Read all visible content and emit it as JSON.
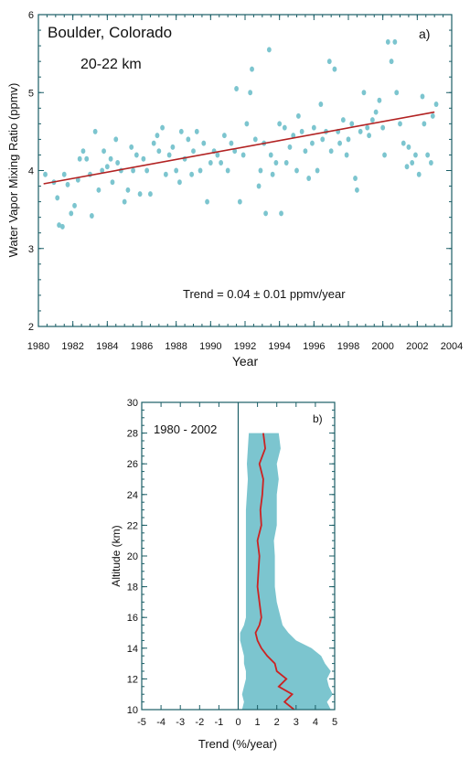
{
  "chart_data": [
    {
      "type": "scatter",
      "panel_label": "a)",
      "title": "Boulder, Colorado",
      "subtitle": "20-22 km",
      "xlabel": "Year",
      "ylabel": "Water Vapor Mixing Ratio (ppmv)",
      "xlim": [
        1980,
        2004
      ],
      "ylim": [
        2,
        6
      ],
      "xticks": [
        "1980",
        "1982",
        "1984",
        "1986",
        "1988",
        "1990",
        "1992",
        "1994",
        "1996",
        "1998",
        "2000",
        "2002",
        "2004"
      ],
      "yticks": [
        "2",
        "3",
        "4",
        "5",
        "6"
      ],
      "annotation": "Trend = 0.04 ± 0.01 ppmv/year",
      "colors": {
        "points": "#7cc5cf",
        "trend_line": "#b22222",
        "frame": "#1a5e66"
      },
      "trend_line": {
        "x": [
          1980.3,
          2003.0
        ],
        "y": [
          3.83,
          4.75
        ]
      },
      "series": [
        {
          "points": [
            [
              1980.4,
              3.95
            ],
            [
              1980.9,
              3.85
            ],
            [
              1981.1,
              3.65
            ],
            [
              1981.2,
              3.3
            ],
            [
              1981.4,
              3.28
            ],
            [
              1981.5,
              3.95
            ],
            [
              1981.7,
              3.82
            ],
            [
              1981.9,
              3.45
            ],
            [
              1982.1,
              3.55
            ],
            [
              1982.3,
              3.88
            ],
            [
              1982.4,
              4.15
            ],
            [
              1982.6,
              4.25
            ],
            [
              1982.8,
              4.15
            ],
            [
              1983.0,
              3.95
            ],
            [
              1983.1,
              3.42
            ],
            [
              1983.3,
              4.5
            ],
            [
              1983.5,
              3.75
            ],
            [
              1983.7,
              4.0
            ],
            [
              1983.8,
              4.25
            ],
            [
              1984.0,
              4.05
            ],
            [
              1984.2,
              4.15
            ],
            [
              1984.3,
              3.85
            ],
            [
              1984.5,
              4.4
            ],
            [
              1984.6,
              4.1
            ],
            [
              1984.8,
              4.0
            ],
            [
              1985.0,
              3.6
            ],
            [
              1985.2,
              3.75
            ],
            [
              1985.4,
              4.3
            ],
            [
              1985.5,
              4.0
            ],
            [
              1985.7,
              4.2
            ],
            [
              1985.9,
              3.7
            ],
            [
              1986.1,
              4.15
            ],
            [
              1986.3,
              4.0
            ],
            [
              1986.5,
              3.7
            ],
            [
              1986.7,
              4.35
            ],
            [
              1986.9,
              4.45
            ],
            [
              1987.0,
              4.25
            ],
            [
              1987.2,
              4.55
            ],
            [
              1987.4,
              3.95
            ],
            [
              1987.6,
              4.2
            ],
            [
              1987.8,
              4.3
            ],
            [
              1988.0,
              4.0
            ],
            [
              1988.2,
              3.85
            ],
            [
              1988.3,
              4.5
            ],
            [
              1988.5,
              4.15
            ],
            [
              1988.7,
              4.4
            ],
            [
              1988.9,
              3.95
            ],
            [
              1989.0,
              4.25
            ],
            [
              1989.2,
              4.5
            ],
            [
              1989.4,
              4.0
            ],
            [
              1989.6,
              4.35
            ],
            [
              1989.8,
              3.6
            ],
            [
              1990.0,
              4.1
            ],
            [
              1990.2,
              4.25
            ],
            [
              1990.4,
              4.2
            ],
            [
              1990.6,
              4.1
            ],
            [
              1990.8,
              4.45
            ],
            [
              1991.0,
              4.0
            ],
            [
              1991.2,
              4.35
            ],
            [
              1991.4,
              4.25
            ],
            [
              1991.5,
              5.05
            ],
            [
              1991.7,
              3.6
            ],
            [
              1991.9,
              4.2
            ],
            [
              1992.1,
              4.6
            ],
            [
              1992.3,
              5.0
            ],
            [
              1992.4,
              5.3
            ],
            [
              1992.6,
              4.4
            ],
            [
              1992.8,
              3.8
            ],
            [
              1992.9,
              4.0
            ],
            [
              1993.1,
              4.35
            ],
            [
              1993.2,
              3.45
            ],
            [
              1993.4,
              5.55
            ],
            [
              1993.5,
              4.2
            ],
            [
              1993.6,
              3.95
            ],
            [
              1993.8,
              4.1
            ],
            [
              1994.0,
              4.6
            ],
            [
              1994.1,
              3.45
            ],
            [
              1994.3,
              4.55
            ],
            [
              1994.4,
              4.1
            ],
            [
              1994.6,
              4.3
            ],
            [
              1994.8,
              4.45
            ],
            [
              1995.0,
              4.0
            ],
            [
              1995.1,
              4.7
            ],
            [
              1995.3,
              4.5
            ],
            [
              1995.5,
              4.25
            ],
            [
              1995.7,
              3.9
            ],
            [
              1995.9,
              4.35
            ],
            [
              1996.0,
              4.55
            ],
            [
              1996.2,
              4.0
            ],
            [
              1996.4,
              4.85
            ],
            [
              1996.5,
              4.4
            ],
            [
              1996.7,
              4.5
            ],
            [
              1996.9,
              5.4
            ],
            [
              1997.0,
              4.25
            ],
            [
              1997.2,
              5.3
            ],
            [
              1997.4,
              4.5
            ],
            [
              1997.5,
              4.35
            ],
            [
              1997.7,
              4.65
            ],
            [
              1997.9,
              4.2
            ],
            [
              1998.0,
              4.4
            ],
            [
              1998.2,
              4.6
            ],
            [
              1998.4,
              3.9
            ],
            [
              1998.5,
              3.75
            ],
            [
              1998.7,
              4.5
            ],
            [
              1998.9,
              5.0
            ],
            [
              1999.1,
              4.55
            ],
            [
              1999.2,
              4.45
            ],
            [
              1999.4,
              4.65
            ],
            [
              1999.6,
              4.75
            ],
            [
              1999.8,
              4.9
            ],
            [
              2000.0,
              4.55
            ],
            [
              2000.1,
              4.2
            ],
            [
              2000.3,
              5.65
            ],
            [
              2000.5,
              5.4
            ],
            [
              2000.7,
              5.65
            ],
            [
              2000.8,
              5.0
            ],
            [
              2001.0,
              4.6
            ],
            [
              2001.2,
              4.35
            ],
            [
              2001.4,
              4.05
            ],
            [
              2001.5,
              4.3
            ],
            [
              2001.7,
              4.1
            ],
            [
              2001.9,
              4.2
            ],
            [
              2002.1,
              3.95
            ],
            [
              2002.3,
              4.95
            ],
            [
              2002.4,
              4.6
            ],
            [
              2002.6,
              4.2
            ],
            [
              2002.8,
              4.1
            ],
            [
              2002.9,
              4.7
            ],
            [
              2003.1,
              4.85
            ]
          ]
        }
      ]
    },
    {
      "type": "line",
      "panel_label": "b)",
      "annotation": "1980 - 2002",
      "xlabel": "Trend (%/year)",
      "ylabel": "Altitude (km)",
      "xlim": [
        -5,
        5
      ],
      "ylim": [
        10,
        30
      ],
      "xticks": [
        "-5",
        "-4",
        "-3",
        "-2",
        "-1",
        "0",
        "1",
        "2",
        "3",
        "4",
        "5"
      ],
      "yticks": [
        "10",
        "12",
        "14",
        "16",
        "18",
        "20",
        "22",
        "24",
        "26",
        "28",
        "30"
      ],
      "colors": {
        "band": "#7cc5cf",
        "line": "#cc2222",
        "frame": "#1a5e66",
        "zero_line": "#1a5e66"
      },
      "series": [
        {
          "name": "",
          "altitude": [
            10,
            10.5,
            11,
            11.5,
            12,
            12.5,
            13,
            13.5,
            14,
            14.5,
            15,
            15.5,
            16,
            17,
            18,
            19,
            20,
            21,
            22,
            23,
            24,
            25,
            26,
            27,
            28
          ],
          "trend": [
            2.9,
            2.4,
            2.8,
            2.1,
            2.5,
            2.0,
            1.9,
            1.5,
            1.2,
            1.0,
            0.9,
            1.1,
            1.2,
            1.1,
            1.0,
            1.05,
            1.1,
            1.0,
            1.2,
            1.15,
            1.25,
            1.3,
            1.1,
            1.4,
            1.3
          ],
          "lower": [
            0.2,
            0.3,
            0.2,
            0.3,
            0.4,
            0.4,
            0.3,
            0.3,
            0.2,
            0.1,
            0.1,
            0.3,
            0.4,
            0.4,
            0.4,
            0.4,
            0.4,
            0.4,
            0.4,
            0.4,
            0.45,
            0.5,
            0.45,
            0.5,
            0.55
          ],
          "upper": [
            4.8,
            4.6,
            4.9,
            4.7,
            4.6,
            4.8,
            4.5,
            4.3,
            3.8,
            3.0,
            2.6,
            2.3,
            2.2,
            2.0,
            1.9,
            1.9,
            1.9,
            1.85,
            2.0,
            2.0,
            2.0,
            2.1,
            2.0,
            2.2,
            2.1
          ]
        }
      ]
    }
  ]
}
